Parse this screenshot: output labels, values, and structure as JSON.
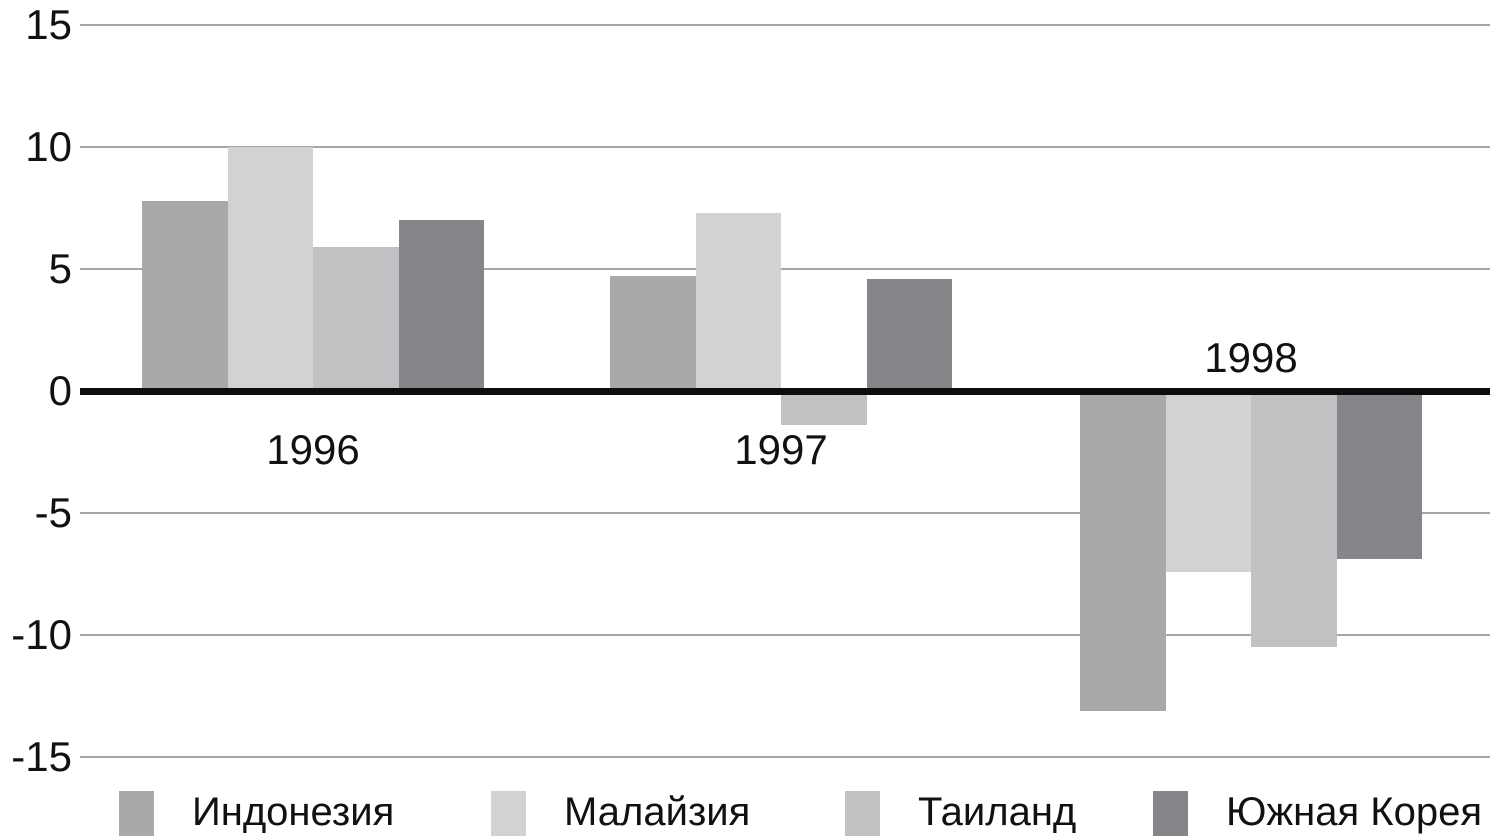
{
  "chart_data": {
    "type": "bar",
    "title": "",
    "xlabel": "",
    "ylabel": "",
    "categories": [
      "1996",
      "1997",
      "1998"
    ],
    "series": [
      {
        "name": "Индонезия",
        "color": "#a9a9ab",
        "values": [
          7.8,
          4.7,
          -13.1
        ]
      },
      {
        "name": "Малайзия",
        "color": "#d2d2d4",
        "values": [
          10.0,
          7.3,
          -7.4
        ]
      },
      {
        "name": "Таиланд",
        "color": "#c1c1c3",
        "values": [
          5.9,
          -1.4,
          -10.5
        ]
      },
      {
        "name": "Южная Корея",
        "color": "#86868a",
        "values": [
          7.0,
          4.6,
          -6.9
        ]
      }
    ],
    "ylim": [
      -15,
      15
    ],
    "yticks": [
      15,
      10,
      5,
      0,
      -5,
      -10,
      -15
    ],
    "grid": true,
    "legend_position": "bottom",
    "colors": {
      "gridline": "#a6a6a8",
      "zero_line": "#0d0d0d",
      "text": "#111111",
      "background": "#ffffff"
    }
  }
}
